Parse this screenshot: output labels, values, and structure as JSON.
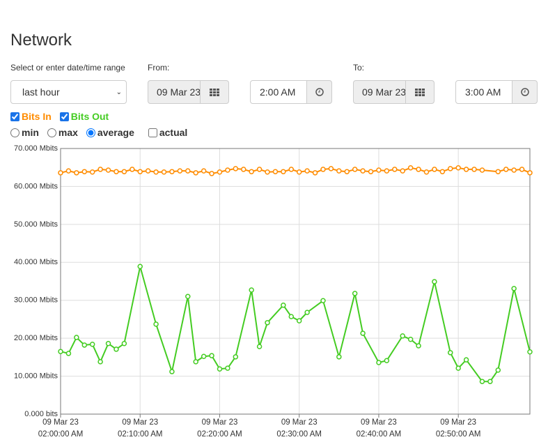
{
  "header": {
    "title": "Network"
  },
  "range": {
    "label": "Select or enter date/time range",
    "selected": "last hour"
  },
  "from": {
    "label": "From:",
    "date": "09 Mar 23",
    "time": "2:00 AM"
  },
  "to": {
    "label": "To:",
    "date": "09 Mar 23",
    "time": "3:00 AM"
  },
  "modes": [
    {
      "label": "min",
      "checked": false
    },
    {
      "label": "max",
      "checked": false
    },
    {
      "label": "average",
      "checked": true
    }
  ],
  "actual": {
    "label": "actual",
    "checked": false
  },
  "chart_data": {
    "type": "line",
    "grid": true,
    "xlim": [
      0,
      59
    ],
    "xticks": [
      {
        "value": 0,
        "label": "09 Mar 23\n02:00:00 AM"
      },
      {
        "value": 10,
        "label": "09 Mar 23\n02:10:00 AM"
      },
      {
        "value": 20,
        "label": "09 Mar 23\n02:20:00 AM"
      },
      {
        "value": 30,
        "label": "09 Mar 23\n02:30:00 AM"
      },
      {
        "value": 40,
        "label": "09 Mar 23\n02:40:00 AM"
      },
      {
        "value": 50,
        "label": "09 Mar 23\n02:50:00 AM"
      }
    ],
    "ylim": [
      0,
      70
    ],
    "yticks": [
      {
        "value": 0,
        "label": "0.000 bits"
      },
      {
        "value": 10,
        "label": "10.000 Mbits"
      },
      {
        "value": 20,
        "label": "20.000 Mbits"
      },
      {
        "value": 30,
        "label": "30.000 Mbits"
      },
      {
        "value": 40,
        "label": "40.000 Mbits"
      },
      {
        "value": 50,
        "label": "50.000 Mbits"
      },
      {
        "value": 60,
        "label": "60.000 Mbits"
      },
      {
        "value": 70,
        "label": "70.000 Mbits"
      }
    ],
    "series": [
      {
        "name": "Bits In",
        "color": "#ff8c00",
        "checked": true,
        "x": [
          0,
          1,
          2,
          3,
          4,
          5,
          6,
          7,
          8,
          9,
          10,
          11,
          12,
          13,
          14,
          15,
          16,
          17,
          18,
          19,
          20,
          21,
          22,
          23,
          24,
          25,
          26,
          27,
          28,
          29,
          30,
          31,
          32,
          33,
          34,
          35,
          36,
          37,
          38,
          39,
          40,
          41,
          42,
          43,
          44,
          45,
          46,
          47,
          48,
          49,
          50,
          51,
          52,
          53,
          55,
          56,
          57,
          58,
          59
        ],
        "values": [
          63.6,
          64.1,
          63.6,
          63.9,
          63.8,
          64.5,
          64.3,
          63.9,
          63.9,
          64.5,
          63.9,
          64.1,
          63.8,
          63.8,
          63.9,
          64.1,
          64.1,
          63.6,
          64.1,
          63.4,
          63.8,
          64.3,
          64.7,
          64.5,
          63.9,
          64.5,
          63.8,
          63.9,
          63.9,
          64.5,
          63.8,
          64.1,
          63.6,
          64.5,
          64.7,
          64.1,
          63.9,
          64.5,
          64.1,
          63.9,
          64.3,
          64.1,
          64.5,
          64.1,
          64.9,
          64.5,
          63.8,
          64.5,
          63.9,
          64.7,
          64.9,
          64.5,
          64.5,
          64.3,
          63.9,
          64.5,
          64.3,
          64.5,
          63.6
        ]
      },
      {
        "name": "Bits Out",
        "color": "#44cc22",
        "checked": true,
        "x": [
          0,
          1,
          2,
          3,
          4,
          5,
          6,
          7,
          8,
          10,
          12,
          14,
          16,
          17,
          18,
          19,
          20,
          21,
          22,
          24,
          25,
          26,
          28,
          29,
          30,
          31,
          33,
          35,
          37,
          38,
          40,
          41,
          43,
          44,
          45,
          47,
          49,
          50,
          51,
          53,
          54,
          55,
          57,
          59
        ],
        "values": [
          16.5,
          16.0,
          20.2,
          18.2,
          18.4,
          13.8,
          18.6,
          17.1,
          18.6,
          38.9,
          23.7,
          11.2,
          31.0,
          13.8,
          15.2,
          15.4,
          11.9,
          12.1,
          15.1,
          32.7,
          17.8,
          24.1,
          28.7,
          25.7,
          24.6,
          26.8,
          29.9,
          15.1,
          31.8,
          21.3,
          13.6,
          14.1,
          20.6,
          19.7,
          18.0,
          34.9,
          16.2,
          12.1,
          14.3,
          8.6,
          8.6,
          11.6,
          33.1,
          16.4
        ]
      }
    ]
  }
}
